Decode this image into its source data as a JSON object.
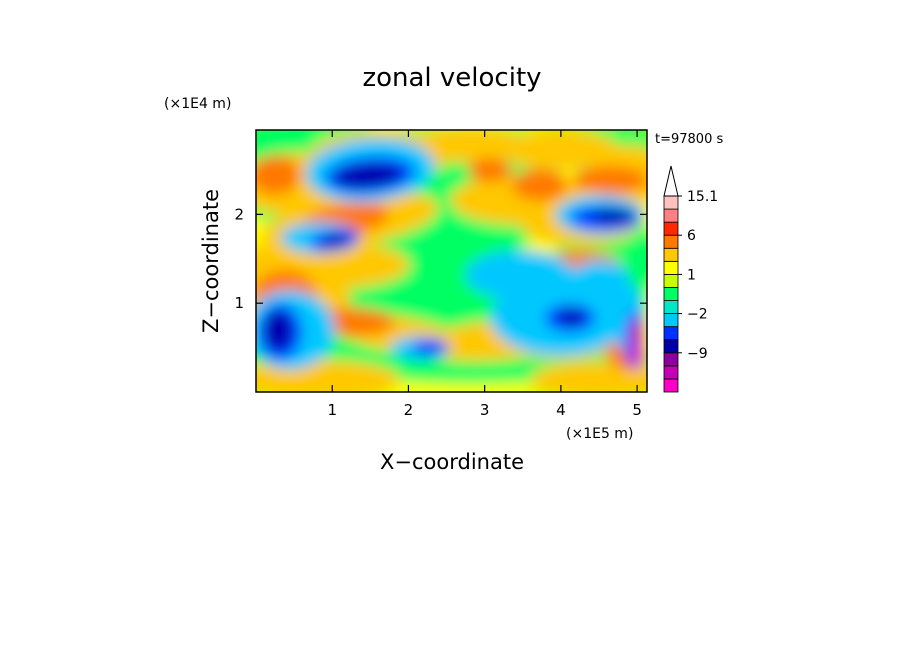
{
  "chart_data": {
    "type": "heatmap",
    "title": "zonal velocity",
    "xlabel": "X−coordinate",
    "ylabel": "Z−coordinate",
    "x_unit": "(×1E5 m)",
    "y_unit": "(×1E4 m)",
    "time_label": "t=97800 s",
    "xlim": [
      0,
      5.13
    ],
    "ylim": [
      0,
      2.95
    ],
    "x_ticks": [
      1,
      2,
      3,
      4,
      5
    ],
    "y_ticks": [
      1,
      2
    ],
    "x_tick_labels": [
      "1",
      "2",
      "3",
      "4",
      "5"
    ],
    "y_tick_labels": [
      "1",
      "2"
    ],
    "colorbar": {
      "levels": [
        -15,
        -12,
        -9,
        -6,
        -4,
        -2,
        -1,
        0,
        1,
        2,
        4,
        6,
        9,
        12,
        15.1
      ],
      "colors": [
        "#ff00c8",
        "#c800b4",
        "#8c00a0",
        "#0000aa",
        "#0032ff",
        "#00c8ff",
        "#00e6c8",
        "#00ff64",
        "#c8ff00",
        "#ffff00",
        "#ffc800",
        "#ff7800",
        "#ff2800",
        "#ff8080",
        "#ffc0c0"
      ],
      "labeled_levels": [
        -9,
        -2,
        1,
        6,
        15.1
      ],
      "labels": [
        "−9",
        "−2",
        "1",
        "6",
        "15.1"
      ],
      "extend": "max"
    }
  }
}
